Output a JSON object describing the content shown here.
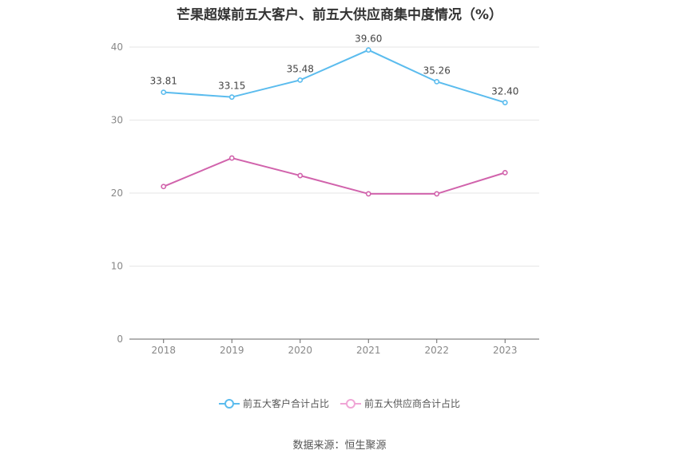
{
  "chart_data": {
    "type": "line",
    "title": "芒果超媒前五大客户、前五大供应商集中度情况（%）",
    "categories": [
      "2018",
      "2019",
      "2020",
      "2021",
      "2022",
      "2023"
    ],
    "ylim": [
      0,
      40
    ],
    "yticks": [
      0,
      10,
      20,
      30,
      40
    ],
    "grid": true,
    "legend_position": "bottom",
    "series": [
      {
        "name": "前五大客户合计占比",
        "color": "#5bbcee",
        "values": [
          33.81,
          33.15,
          35.48,
          39.6,
          35.26,
          32.4
        ],
        "labels": [
          "33.81",
          "33.15",
          "35.48",
          "39.60",
          "35.26",
          "32.40"
        ]
      },
      {
        "name": "前五大供应商合计占比",
        "color": "#d163ac",
        "values": [
          20.9,
          24.8,
          22.4,
          19.9,
          19.9,
          22.8
        ],
        "labels": []
      }
    ],
    "legend_colors": [
      "#5bbcee",
      "#f0a6d6"
    ]
  },
  "source": "数据来源：恒生聚源"
}
